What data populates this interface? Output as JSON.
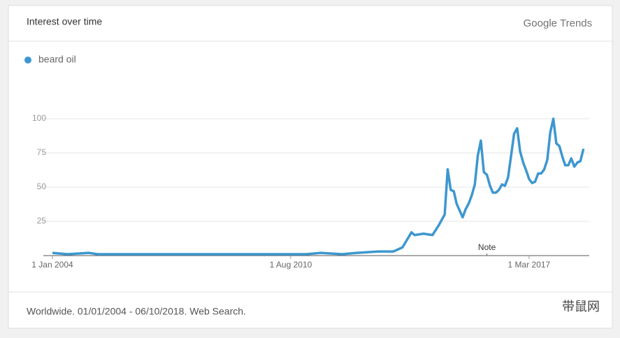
{
  "header": {
    "title": "Interest over time",
    "logo_brand": "Google",
    "logo_product": "Trends"
  },
  "footer": {
    "text": "Worldwide. 01/01/2004 - 06/10/2018. Web Search.",
    "watermark": "带鼠网"
  },
  "chart_data": {
    "type": "line",
    "x": [
      "2004-01-01",
      "2004-06-01",
      "2005-01-01",
      "2005-04-01",
      "2006-01-01",
      "2007-01-01",
      "2008-01-01",
      "2009-01-01",
      "2010-01-01",
      "2011-01-01",
      "2011-06-01",
      "2012-01-01",
      "2012-06-01",
      "2013-01-01",
      "2013-06-01",
      "2013-09-01",
      "2013-12-01",
      "2014-01-01",
      "2014-04-01",
      "2014-07-01",
      "2014-09-01",
      "2014-11-01",
      "2014-12-01",
      "2015-01-01",
      "2015-02-01",
      "2015-03-01",
      "2015-05-01",
      "2015-06-01",
      "2015-07-01",
      "2015-08-01",
      "2015-09-01",
      "2015-10-01",
      "2015-11-01",
      "2015-12-01",
      "2016-01-01",
      "2016-02-01",
      "2016-03-01",
      "2016-04-01",
      "2016-05-01",
      "2016-06-01",
      "2016-07-01",
      "2016-08-01",
      "2016-09-01",
      "2016-10-01",
      "2016-11-01",
      "2016-12-01",
      "2017-01-01",
      "2017-02-01",
      "2017-03-01",
      "2017-04-01",
      "2017-05-01",
      "2017-06-01",
      "2017-07-01",
      "2017-08-01",
      "2017-09-01",
      "2017-10-01",
      "2017-11-01",
      "2017-12-01",
      "2018-01-01",
      "2018-02-01",
      "2018-03-01",
      "2018-04-01",
      "2018-05-01",
      "2018-06-01",
      "2018-07-01",
      "2018-08-01",
      "2018-09-01"
    ],
    "series": [
      {
        "name": "beard oil",
        "color": "#3d97cf",
        "values": [
          2,
          1,
          2,
          1,
          1,
          1,
          1,
          1,
          1,
          1,
          2,
          1,
          2,
          3,
          3,
          6,
          17,
          15,
          16,
          15,
          22,
          30,
          63,
          48,
          47,
          38,
          28,
          34,
          38,
          44,
          52,
          73,
          84,
          61,
          59,
          51,
          46,
          46,
          48,
          52,
          51,
          57,
          73,
          89,
          93,
          76,
          68,
          62,
          56,
          53,
          54,
          60,
          60,
          63,
          70,
          90,
          100,
          82,
          80,
          72,
          66,
          66,
          71,
          65,
          68,
          69,
          78
        ]
      }
    ],
    "xlim": [
      "2004-01-01",
      "2018-10-01"
    ],
    "xticks": [
      {
        "value": "2004-01-01",
        "label": "1 Jan 2004"
      },
      {
        "value": "2010-08-01",
        "label": "1 Aug 2010"
      },
      {
        "value": "2017-03-01",
        "label": "1 Mar 2017"
      }
    ],
    "ylim": [
      0,
      100
    ],
    "yticks": [
      25,
      50,
      75,
      100
    ],
    "grid": true,
    "annotations": [
      {
        "text": "Note",
        "x": "2016-01-01"
      }
    ]
  }
}
